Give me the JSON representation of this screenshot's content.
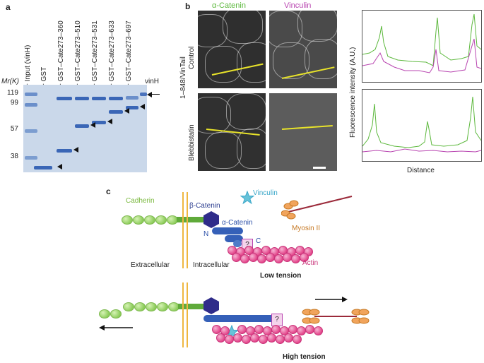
{
  "panel_a": {
    "letter": "a",
    "mw_unit": "Mr(K)",
    "plus": "+",
    "lanes": [
      "Input (vinH)",
      "GST",
      "GST–Cate273–360",
      "GST–Cate273–510",
      "GST–Cate273–531",
      "GST–Cate273–633",
      "GST–Cate273–697"
    ],
    "markers": [
      "119",
      "99",
      "57",
      "38"
    ],
    "vinH_label": "vinH"
  },
  "panel_b": {
    "letter": "b",
    "channel_1": "α-Catenin",
    "channel_2": "Vinculin",
    "construct_label": "1–848/VinTail",
    "row_1": "Control",
    "row_2": "Blebbistatin",
    "ylabel": "Fluorescence intensity (A.U.)",
    "xlabel": "Distance",
    "colors": {
      "catenin": "#5cb83c",
      "vinculin": "#b844b0"
    }
  },
  "panel_c": {
    "letter": "c",
    "cadherin": "Cadherin",
    "beta_catenin": "β-Catenin",
    "alpha_catenin": "α-Catenin",
    "vinculin": "Vinculin",
    "myosin": "Myosin II",
    "actin": "Actin",
    "n_term": "N",
    "c_term": "C",
    "question": "?",
    "extracellular": "Extracellular",
    "intracellular": "Intracellular",
    "low_tension": "Low tension",
    "high_tension": "High tension",
    "colors": {
      "cadherin": "#8fcf5a",
      "catenin": "#2b4fa8",
      "vinculin": "#3aa7c9",
      "myosin": "#e0903a",
      "actin": "#e3458a"
    }
  }
}
